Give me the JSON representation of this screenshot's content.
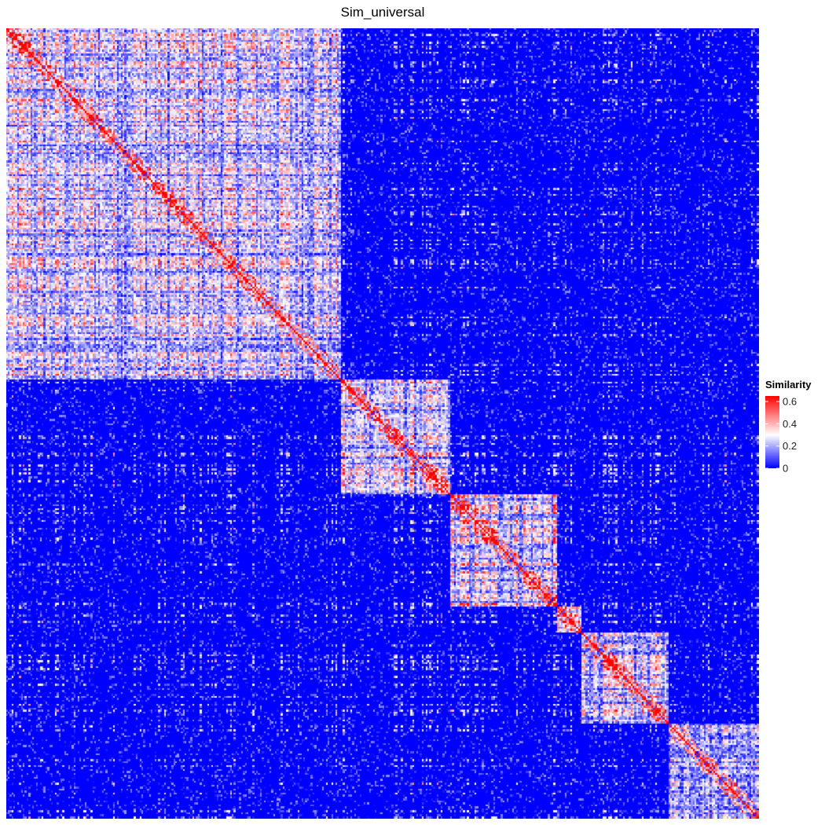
{
  "chart_data": {
    "type": "heatmap",
    "title": "Sim_universal",
    "matrix": "similarity (symmetric, block-diagonal clustering)",
    "colorbar": {
      "title": "Similarity",
      "ticks": [
        0,
        0.2,
        0.4,
        0.6
      ],
      "min": 0,
      "max": 0.65,
      "colors": {
        "low": "#0000FF",
        "mid": "#FFFFFF",
        "high": "#FF0000"
      },
      "midpoint": 0.3
    },
    "clusters": [
      {
        "start": 0.0,
        "end": 0.445,
        "density": 0.45
      },
      {
        "start": 0.445,
        "end": 0.592,
        "density": 0.4
      },
      {
        "start": 0.592,
        "end": 0.733,
        "density": 0.55
      },
      {
        "start": 0.733,
        "end": 0.765,
        "density": 0.5
      },
      {
        "start": 0.765,
        "end": 0.88,
        "density": 0.35
      },
      {
        "start": 0.88,
        "end": 1.0,
        "density": 0.3
      }
    ],
    "legend_position": "right",
    "grid": false
  }
}
